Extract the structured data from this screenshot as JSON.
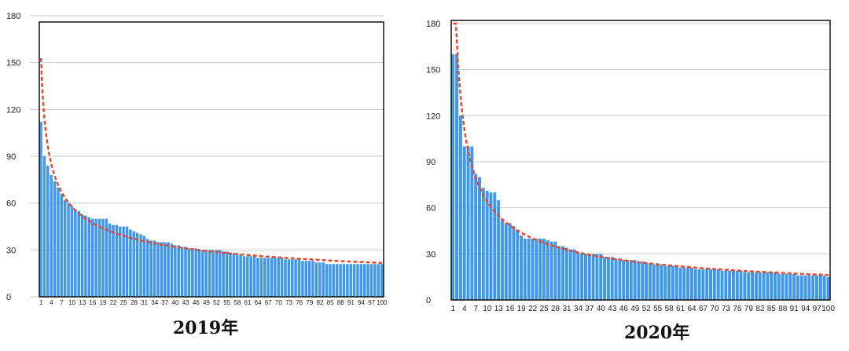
{
  "chart_data": [
    {
      "type": "bar",
      "title": "2019年",
      "xlabel": "",
      "ylabel": "",
      "ylim": [
        0,
        180
      ],
      "yticks": [
        "0",
        "30",
        "60",
        "90",
        "120",
        "150",
        "180"
      ],
      "xtick_labels": [
        "1",
        "4",
        "7",
        "10",
        "13",
        "16",
        "19",
        "22",
        "25",
        "28",
        "31",
        "34",
        "37",
        "40",
        "43",
        "46",
        "49",
        "52",
        "55",
        "58",
        "61",
        "64",
        "67",
        "70",
        "73",
        "76",
        "79",
        "82",
        "85",
        "88",
        "91",
        "94",
        "97",
        "100"
      ],
      "categories_count": 100,
      "trendline": "power",
      "grid": true,
      "colors": {
        "bar": "#3f97ee",
        "trend": "#e04a2f"
      },
      "values": [
        112,
        90,
        84,
        78,
        74,
        70,
        66,
        62,
        60,
        58,
        56,
        55,
        53,
        52,
        51,
        50,
        50,
        50,
        50,
        50,
        47,
        46,
        46,
        45,
        45,
        45,
        43,
        42,
        41,
        40,
        39,
        37,
        36,
        36,
        35,
        35,
        35,
        35,
        34,
        33,
        33,
        32,
        32,
        31,
        31,
        31,
        30,
        30,
        30,
        30,
        30,
        30,
        30,
        29,
        29,
        28,
        28,
        27,
        27,
        26,
        26,
        26,
        26,
        25,
        25,
        25,
        25,
        25,
        25,
        25,
        25,
        24,
        24,
        24,
        24,
        24,
        23,
        23,
        23,
        23,
        22,
        22,
        22,
        21,
        21,
        21,
        21,
        21,
        21,
        21,
        21,
        21,
        21,
        21,
        21,
        21,
        21,
        21,
        21,
        21
      ]
    },
    {
      "type": "bar",
      "title": "2020年",
      "xlabel": "",
      "ylabel": "",
      "ylim": [
        0,
        180
      ],
      "yticks": [
        "0",
        "30",
        "60",
        "90",
        "120",
        "150",
        "180"
      ],
      "xtick_labels": [
        "1",
        "4",
        "7",
        "10",
        "13",
        "16",
        "19",
        "22",
        "25",
        "28",
        "31",
        "34",
        "37",
        "40",
        "43",
        "46",
        "49",
        "52",
        "55",
        "58",
        "61",
        "64",
        "67",
        "70",
        "73",
        "76",
        "79",
        "82",
        "85",
        "88",
        "91",
        "94",
        "97",
        "100"
      ],
      "categories_count": 100,
      "trendline": "power",
      "grid": true,
      "colors": {
        "bar": "#3f97ee",
        "trend": "#e04a2f"
      },
      "values": [
        160,
        160,
        120,
        100,
        100,
        100,
        82,
        80,
        73,
        71,
        70,
        70,
        65,
        52,
        50,
        50,
        48,
        45,
        42,
        40,
        40,
        40,
        40,
        40,
        40,
        39,
        38,
        38,
        35,
        35,
        34,
        33,
        33,
        31,
        30,
        30,
        30,
        30,
        30,
        30,
        28,
        28,
        28,
        27,
        27,
        26,
        26,
        26,
        26,
        25,
        25,
        24,
        24,
        23,
        23,
        23,
        22,
        22,
        22,
        22,
        21,
        21,
        21,
        21,
        20,
        20,
        20,
        20,
        20,
        20,
        20,
        19,
        19,
        19,
        19,
        19,
        19,
        18,
        18,
        18,
        18,
        18,
        18,
        18,
        18,
        18,
        17,
        17,
        17,
        17,
        17,
        16,
        16,
        16,
        16,
        16,
        16,
        16,
        16,
        15
      ]
    }
  ]
}
